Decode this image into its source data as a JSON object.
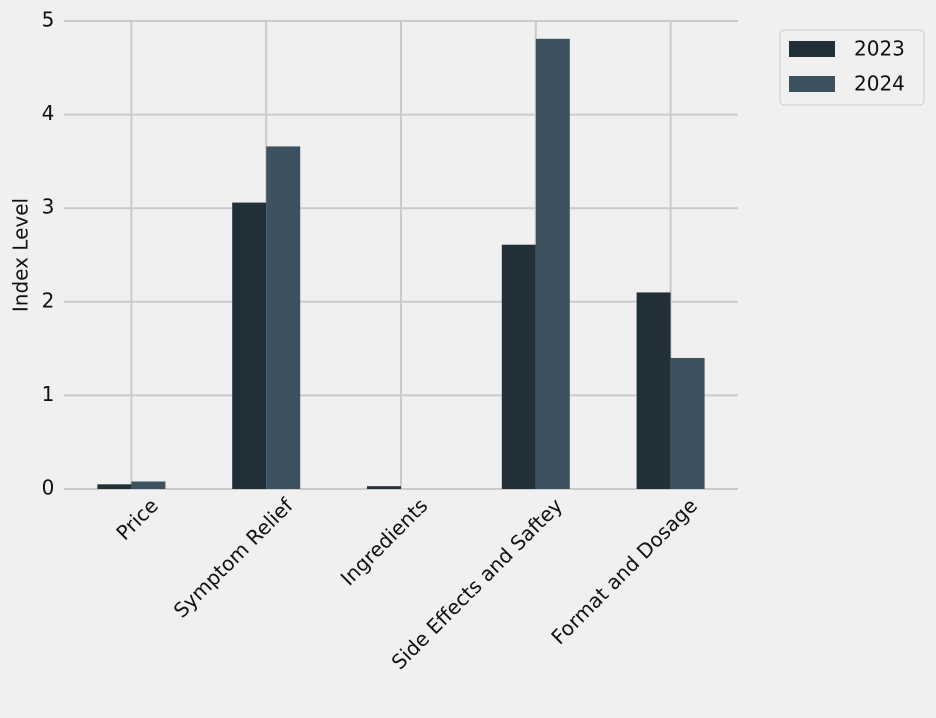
{
  "chart_data": {
    "type": "bar",
    "y_label": "Index Level",
    "categories": [
      "Price",
      "Symptom Relief",
      "Ingredients",
      "Side Effects and Saftey",
      "Format and Dosage"
    ],
    "series": [
      {
        "name": "2023",
        "color": "#212f38",
        "values": [
          0.05,
          3.06,
          0.03,
          2.61,
          2.1
        ]
      },
      {
        "name": "2024",
        "color": "#3d525e",
        "values": [
          0.08,
          3.66,
          0,
          4.81,
          1.4
        ]
      }
    ],
    "ylim": [
      0,
      5
    ],
    "yticks": [
      0,
      1,
      2,
      3,
      4,
      5
    ],
    "grid": true,
    "legend": "outside-upper-right"
  }
}
